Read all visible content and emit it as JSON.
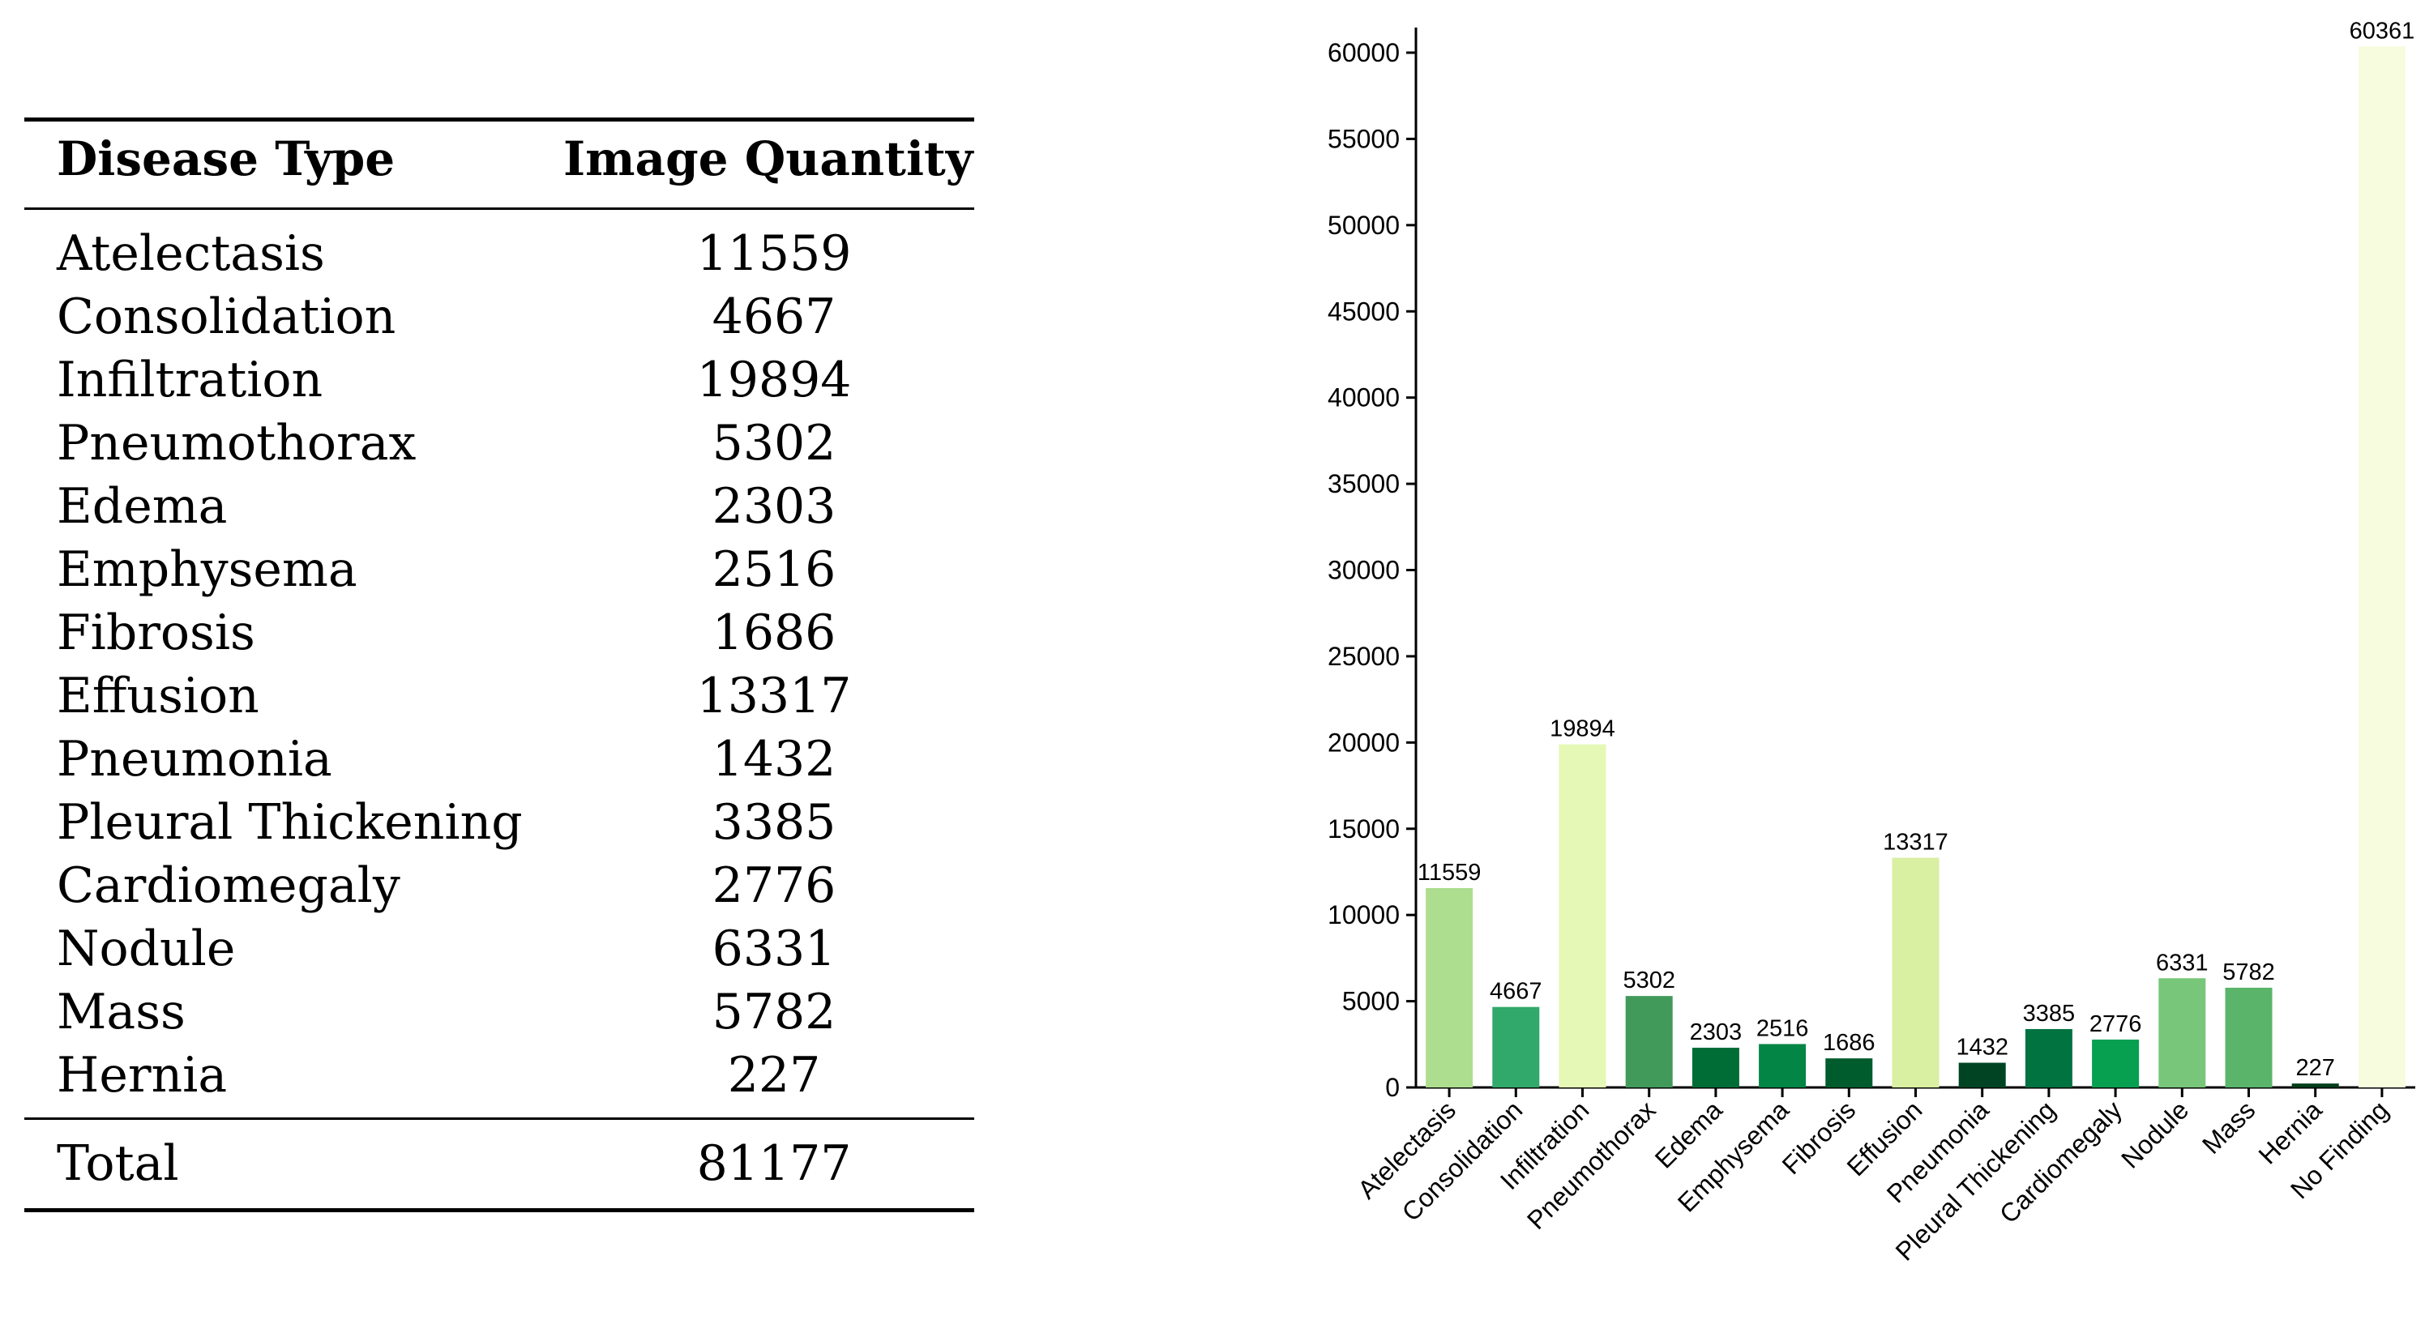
{
  "table": {
    "headers": {
      "disease": "Disease Type",
      "quantity": "Image Quantity"
    },
    "rows": [
      {
        "disease": "Atelectasis",
        "quantity": "11559"
      },
      {
        "disease": "Consolidation",
        "quantity": "4667"
      },
      {
        "disease": "Infiltration",
        "quantity": "19894"
      },
      {
        "disease": "Pneumothorax",
        "quantity": "5302"
      },
      {
        "disease": "Edema",
        "quantity": "2303"
      },
      {
        "disease": "Emphysema",
        "quantity": "2516"
      },
      {
        "disease": "Fibrosis",
        "quantity": "1686"
      },
      {
        "disease": "Effusion",
        "quantity": "13317"
      },
      {
        "disease": "Pneumonia",
        "quantity": "1432"
      },
      {
        "disease": "Pleural Thickening",
        "quantity": "3385"
      },
      {
        "disease": "Cardiomegaly",
        "quantity": "2776"
      },
      {
        "disease": "Nodule",
        "quantity": "6331"
      },
      {
        "disease": "Mass",
        "quantity": "5782"
      },
      {
        "disease": "Hernia",
        "quantity": "227"
      }
    ],
    "total": {
      "label": "Total",
      "quantity": "81177"
    }
  },
  "chart_data": {
    "type": "bar",
    "categories": [
      "Atelectasis",
      "Consolidation",
      "Infiltration",
      "Pneumothorax",
      "Edema",
      "Emphysema",
      "Fibrosis",
      "Effusion",
      "Pneumonia",
      "Pleural Thickening",
      "Cardiomegaly",
      "Nodule",
      "Mass",
      "Hernia",
      "No Finding"
    ],
    "values": [
      11559,
      4667,
      19894,
      5302,
      2303,
      2516,
      1686,
      13317,
      1432,
      3385,
      2776,
      6331,
      5782,
      227,
      60361
    ],
    "colors": [
      "#addd8e",
      "#31a96b",
      "#e6f8b6",
      "#41995a",
      "#006d36",
      "#028545",
      "#005c2c",
      "#d9efa2",
      "#004424",
      "#007340",
      "#06a050",
      "#78c679",
      "#5ab46a",
      "#003d1b",
      "#f7fcdf"
    ],
    "ylim": [
      0,
      65000
    ],
    "yticks": [
      0,
      5000,
      10000,
      15000,
      20000,
      25000,
      30000,
      35000,
      40000,
      45000,
      50000,
      55000,
      60000,
      65000
    ],
    "data_labels": true,
    "grid": false,
    "legend": false
  }
}
